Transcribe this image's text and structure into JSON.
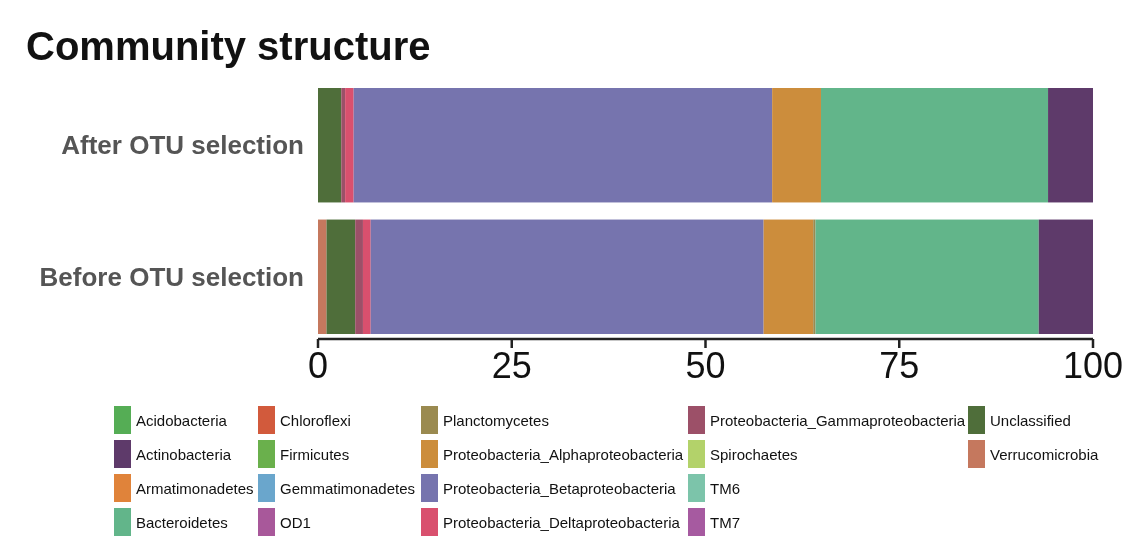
{
  "chart_data": {
    "type": "bar",
    "title": "Community structure",
    "orientation": "horizontal",
    "stacked": true,
    "categories": [
      "After OTU selection",
      "Before OTU selection"
    ],
    "xlim": [
      0,
      100
    ],
    "xticks": [
      0,
      25,
      50,
      75,
      100
    ],
    "grid": false,
    "legend": "bottom",
    "series": [
      {
        "name": "Verrucomicrobia",
        "color": "#c5785e",
        "values": [
          0,
          1.1
        ]
      },
      {
        "name": "Unclassified",
        "color": "#4f6e3a",
        "values": [
          3.0,
          3.7
        ]
      },
      {
        "name": "TM7",
        "color": "#a65aa0",
        "values": [
          0,
          0
        ]
      },
      {
        "name": "TM6",
        "color": "#7cc4aa",
        "values": [
          0,
          0
        ]
      },
      {
        "name": "Spirochaetes",
        "color": "#b3d26a",
        "values": [
          0,
          0
        ]
      },
      {
        "name": "Proteobacteria_Gammaproteobacteria",
        "color": "#9c5068",
        "values": [
          0.5,
          1.0
        ]
      },
      {
        "name": "Proteobacteria_Deltaproteobacteria",
        "color": "#d9506e",
        "values": [
          1.1,
          1.0
        ]
      },
      {
        "name": "Proteobacteria_Betaproteobacteria",
        "color": "#7674ae",
        "values": [
          54.0,
          50.7
        ]
      },
      {
        "name": "Proteobacteria_Alphaproteobacteria",
        "color": "#cc8d3c",
        "values": [
          6.3,
          6.4
        ]
      },
      {
        "name": "Planctomycetes",
        "color": "#9a8a50",
        "values": [
          0,
          0.3
        ]
      },
      {
        "name": "OD1",
        "color": "#a8589a",
        "values": [
          0,
          0
        ]
      },
      {
        "name": "Gemmatimonadetes",
        "color": "#6aa6cc",
        "values": [
          0,
          0
        ]
      },
      {
        "name": "Firmicutes",
        "color": "#6ab04c",
        "values": [
          0,
          0
        ]
      },
      {
        "name": "Chloroflexi",
        "color": "#d25a3c",
        "values": [
          0,
          0
        ]
      },
      {
        "name": "Bacteroidetes",
        "color": "#62b58a",
        "values": [
          29.3,
          28.8
        ]
      },
      {
        "name": "Armatimonadetes",
        "color": "#e0833a",
        "values": [
          0,
          0
        ]
      },
      {
        "name": "Actinobacteria",
        "color": "#5e3a6a",
        "values": [
          5.8,
          7.0
        ]
      },
      {
        "name": "Acidobacteria",
        "color": "#55ad55",
        "values": [
          0,
          0
        ]
      }
    ]
  }
}
